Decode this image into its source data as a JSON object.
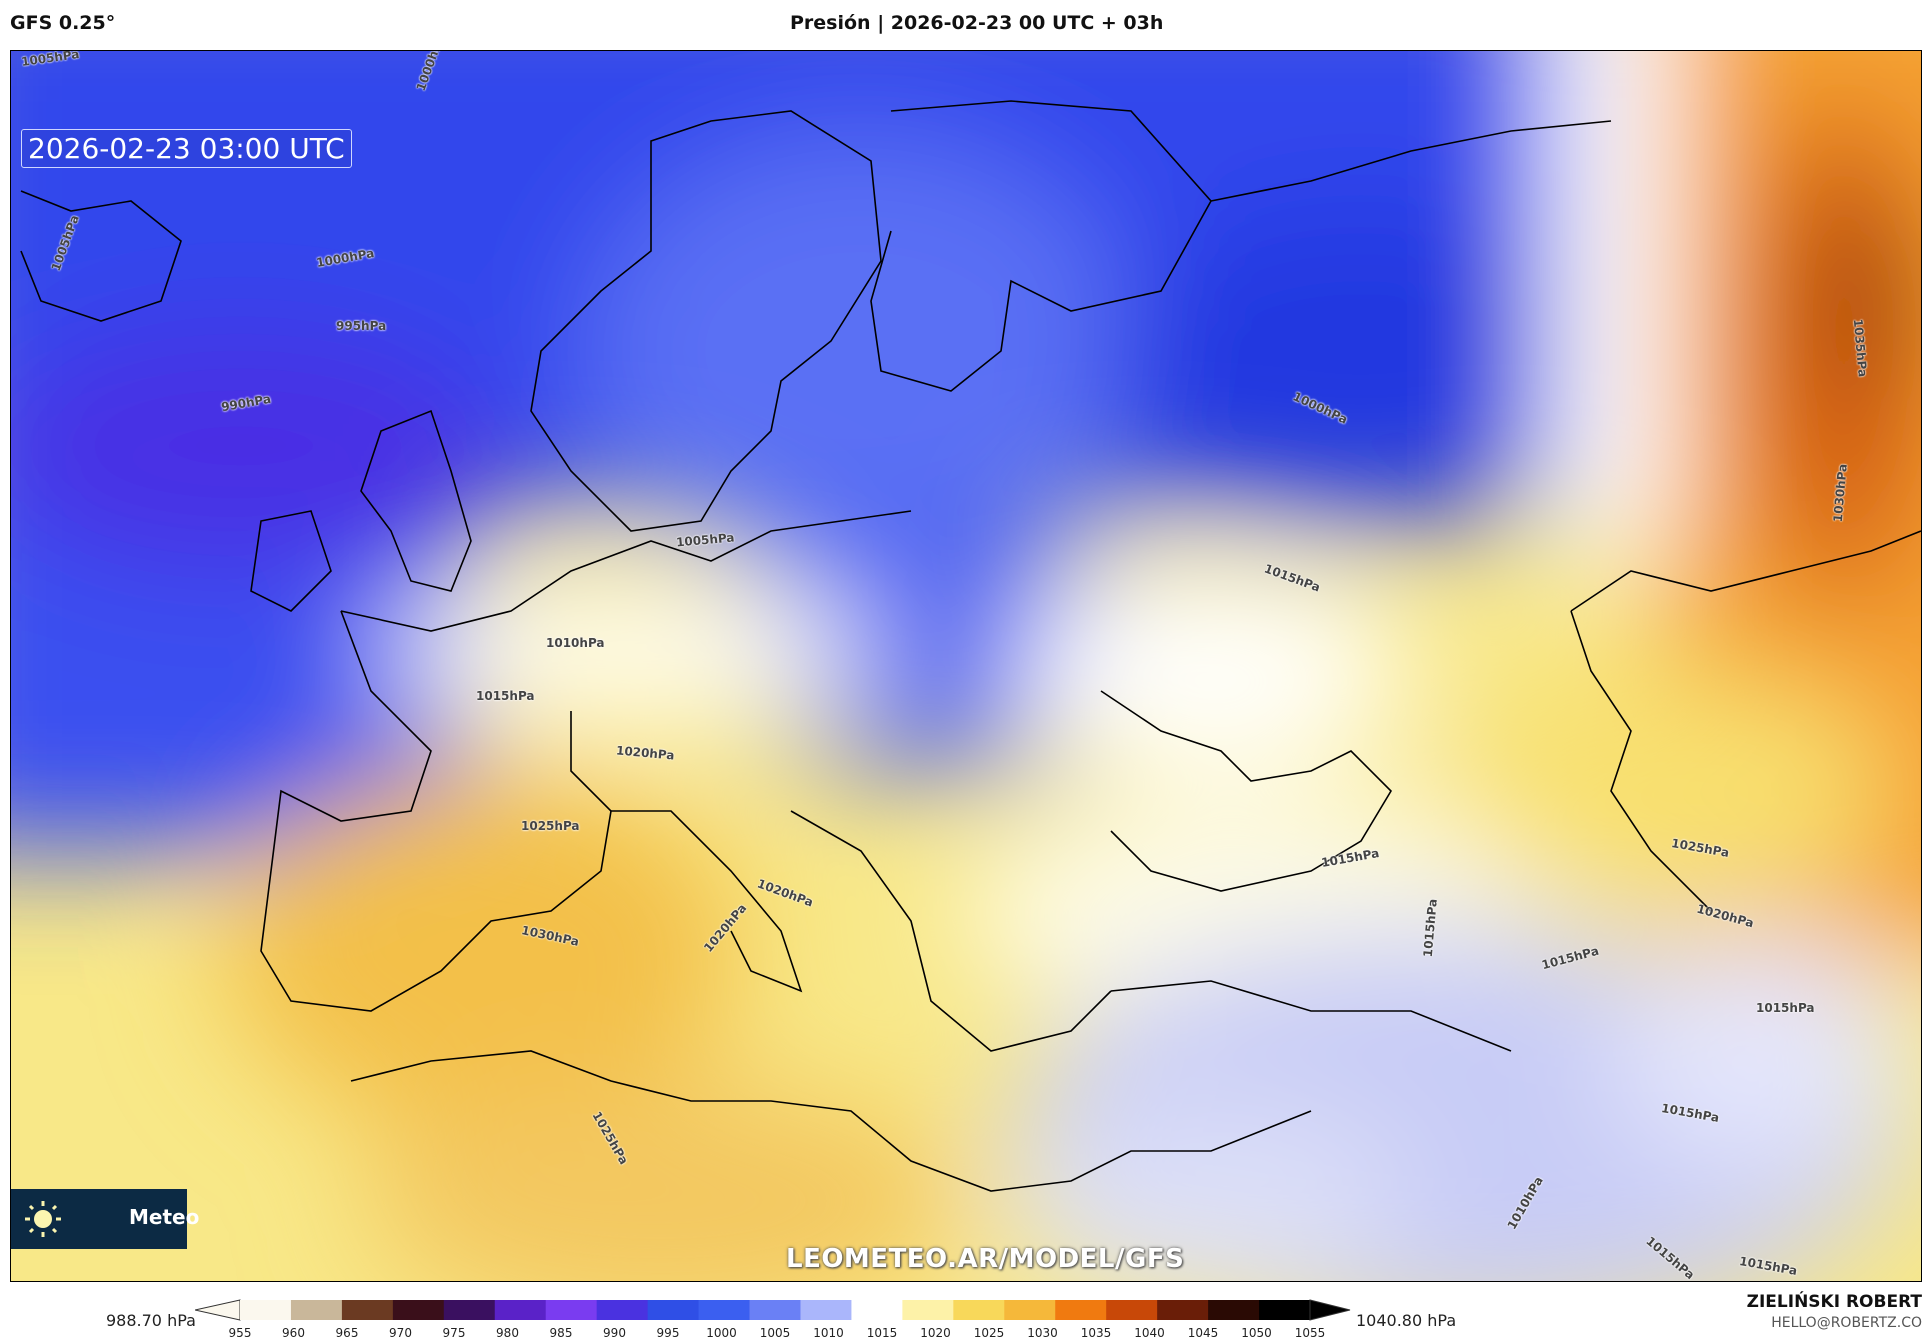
{
  "header": {
    "model": "GFS 0.25°",
    "title": "Presión | 2026-02-23 00 UTC + 03h"
  },
  "map": {
    "timestamp": "2026-02-23 03:00 UTC",
    "watermark": "LEOMETEO.AR/MODEL/GFS",
    "logo": {
      "icon": "sun-icon",
      "text": "Meteo"
    },
    "contour_labels": [
      "1005hPa",
      "1000hPa",
      "1000hPa",
      "995hPa",
      "990hPa",
      "1000hPa",
      "1005hPa",
      "1010hPa",
      "1015hPa",
      "1020hPa",
      "1025hPa",
      "1030hPa",
      "1020hPa",
      "1020hPa",
      "1025hPa",
      "1015hPa",
      "1015hPa",
      "1015hPa",
      "1015hPa",
      "1025hPa",
      "1020hPa",
      "1015hPa",
      "1015hPa",
      "1030hPa",
      "1035hPa",
      "1010hPa",
      "1015hPa",
      "1015hPa",
      "1005hPa"
    ]
  },
  "colorbar": {
    "min_label": "988.70 hPa",
    "max_label": "1040.80 hPa",
    "ticks": [
      "955",
      "960",
      "965",
      "970",
      "975",
      "980",
      "985",
      "990",
      "995",
      "1000",
      "1005",
      "1010",
      "1015",
      "1020",
      "1025",
      "1030",
      "1035",
      "1040",
      "1045",
      "1050",
      "1055"
    ],
    "colors": [
      "#fbf8ee",
      "#c9b79a",
      "#6b3a22",
      "#3a0f1a",
      "#3a1060",
      "#5a22c8",
      "#7a3cf0",
      "#4a32e0",
      "#2f4fe6",
      "#3b5ff0",
      "#6a80f5",
      "#aab6fb",
      "#ffffff",
      "#fdf2a8",
      "#f8d85a",
      "#f5b83a",
      "#f07a10",
      "#c84808",
      "#6a1e08",
      "#2a0a04",
      "#000000"
    ]
  },
  "signature": {
    "name": "ZIELIŃSKI ROBERT",
    "email": "HELLO@ROBERTZ.CO"
  }
}
